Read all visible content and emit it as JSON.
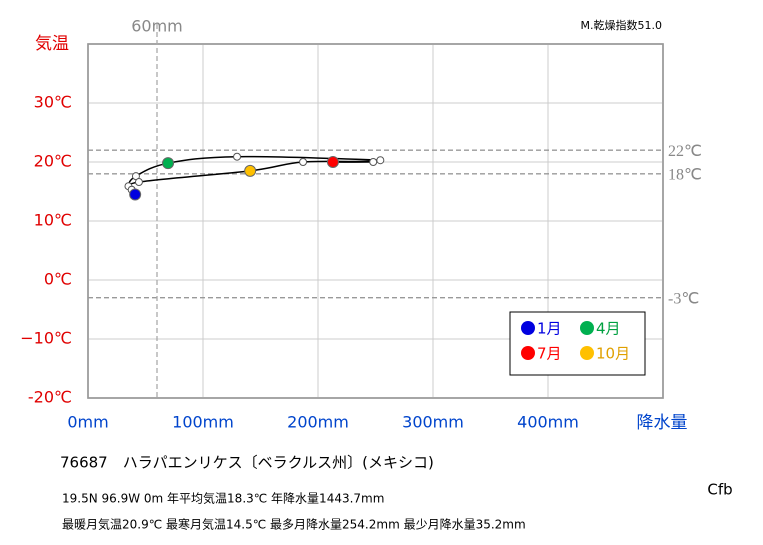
{
  "chart_data": {
    "type": "climograph",
    "y_label": "気温",
    "x_label": "降水量",
    "dryness_index": "M.乾燥指数51.0",
    "x": [
      41,
      35.2,
      41.7,
      69.6,
      129.6,
      254.2,
      213,
      248,
      187,
      141,
      44.3,
      38
    ],
    "values": [
      14.5,
      15.9,
      17.6,
      19.8,
      20.9,
      20.3,
      20.0,
      20.0,
      20.0,
      18.5,
      16.6,
      15.3
    ],
    "line_color": "#000000",
    "marker_color": "#ffffff",
    "series": [
      {
        "name": "1月",
        "color": "#0000e0",
        "x": [
          41
        ],
        "values": [
          14.5
        ]
      },
      {
        "name": "4月",
        "color": "#00b050",
        "x": [
          69.6
        ],
        "values": [
          19.8
        ]
      },
      {
        "name": "7月",
        "color": "#ff0000",
        "x": [
          213
        ],
        "values": [
          20.0
        ]
      },
      {
        "name": "10月",
        "color": "#ffc000",
        "x": [
          141
        ],
        "values": [
          18.5
        ]
      }
    ],
    "legend_text_colors": [
      "#0000e0",
      "#00a040",
      "#ff0000",
      "#e0a000"
    ],
    "xlim": [
      0,
      500
    ],
    "ylim": [
      -20,
      40
    ],
    "xticks": [
      {
        "value": 0,
        "label": "0mm"
      },
      {
        "value": 100,
        "label": "100mm"
      },
      {
        "value": 200,
        "label": "200mm"
      },
      {
        "value": 300,
        "label": "300mm"
      },
      {
        "value": 400,
        "label": "400mm"
      },
      500
    ],
    "yticks": [
      {
        "value": -20,
        "label": "-20℃"
      },
      {
        "value": -10,
        "label": "−10℃"
      },
      {
        "value": 0,
        "label": "0℃"
      },
      {
        "value": 10,
        "label": "10℃"
      },
      {
        "value": 20,
        "label": "20℃"
      },
      {
        "value": 30,
        "label": "30℃"
      },
      40
    ],
    "ref_lines_y": [
      {
        "value": 22,
        "label": "22℃"
      },
      {
        "value": 18,
        "label": "18℃"
      },
      {
        "value": -3,
        "label": "-3℃"
      }
    ],
    "ref_line_x": {
      "value": 60,
      "label": "60mm"
    },
    "grid": true,
    "info": [
      "76687　ハラパエンリケス〔ベラクルス州〕(メキシコ)",
      "19.5N  96.9W 0m  年平均気温18.3℃ 年降水量1443.7mm",
      "最暖月気温20.9℃ 最寒月気温14.5℃ 最多月降水量254.2mm 最少月降水量35.2mm"
    ],
    "climate": "Cfb"
  }
}
